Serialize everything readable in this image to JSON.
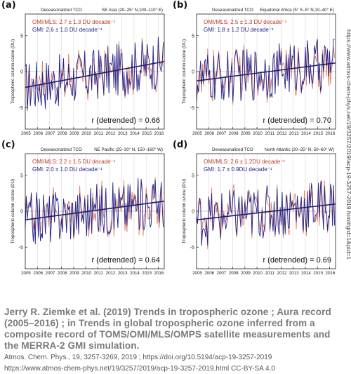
{
  "colors": {
    "omi": "#e0806c",
    "gmi": "#22238a",
    "trend": "#1d1d6e",
    "axis": "#222222",
    "grid": "#cfcfcf",
    "caption": "#7a7a7a"
  },
  "panels": [
    {
      "id": "a",
      "label": "(a)",
      "title_left": "Deseasonalized TCO",
      "title_right": "SE Asia (20–25° N,100–110° E)",
      "omi_label": "OMI/MLS:  2.7 ± 1.3 DU decade⁻¹",
      "gmi_label": "GMI:  2.6 ± 1.0 DU decade⁻¹",
      "r_label": "r (detrended) = 0.66"
    },
    {
      "id": "b",
      "label": "(b)",
      "title_left": "Deseasonalized TCO",
      "title_right": "Equatorial Africa (5° S–5° N,10–40° E)",
      "omi_label": "OMI/MLS:  2.5 ± 1.3 DU decade⁻¹",
      "gmi_label": "GMI:  1.8 ± 1.2 DU decade⁻¹",
      "r_label": "r (detrended) = 0.70"
    },
    {
      "id": "c",
      "label": "(c)",
      "title_left": "Deseasonalized TCO",
      "title_right": "NE Pacific (25–30° N, 150–160° W)",
      "omi_label": "OMI/MLS:  2.2 ± 1.5 DU decade⁻¹",
      "gmi_label": "GMI:  2.0 ± 1.0 DU decade⁻¹",
      "r_label": "r (detrended) = 0.64"
    },
    {
      "id": "d",
      "label": "(d)",
      "title_left": "Deseasonalized TCO",
      "title_right": "North Atlantic (20–25° N, 50–60° W)",
      "omi_label": "OMI/MLS:  2.6 ± 1.2DU decade⁻¹",
      "gmi_label": "GMI:  1.7 ± 0.9DU decade⁻¹",
      "r_label": "r (detrended) = 0.69"
    }
  ],
  "chart_data": [
    {
      "panel": "a",
      "type": "line",
      "ylabel": "Tropospheric column ozone (DU)",
      "xlim": [
        2005,
        2016.5
      ],
      "ylim": [
        -8,
        8
      ],
      "yticks": [
        -5,
        0,
        5
      ],
      "xticks": [
        2005,
        2006,
        2007,
        2008,
        2009,
        2010,
        2011,
        2012,
        2013,
        2014,
        2015,
        2016
      ],
      "series": [
        {
          "name": "OMI/MLS",
          "trend_per_decade": 2.7,
          "trend_uncertainty": 1.3
        },
        {
          "name": "GMI",
          "trend_per_decade": 2.6,
          "trend_uncertainty": 1.0
        }
      ],
      "trend_line": {
        "x": [
          2005,
          2016.5
        ],
        "y": [
          -2.2,
          1.4
        ]
      },
      "r_detrended": 0.66
    },
    {
      "panel": "b",
      "type": "line",
      "ylabel": "Tropospheric column ozone (DU)",
      "xlim": [
        2005,
        2016.5
      ],
      "ylim": [
        -8,
        8
      ],
      "yticks": [
        -5,
        0,
        5
      ],
      "xticks": [
        2005,
        2006,
        2007,
        2008,
        2009,
        2010,
        2011,
        2012,
        2013,
        2014,
        2015,
        2016
      ],
      "series": [
        {
          "name": "OMI/MLS",
          "trend_per_decade": 2.5,
          "trend_uncertainty": 1.3
        },
        {
          "name": "GMI",
          "trend_per_decade": 1.8,
          "trend_uncertainty": 1.2
        }
      ],
      "trend_line": {
        "x": [
          2005,
          2016.5
        ],
        "y": [
          -1.3,
          1.2
        ]
      },
      "r_detrended": 0.7
    },
    {
      "panel": "c",
      "type": "line",
      "ylabel": "Tropospheric column ozone (DU)",
      "xlim": [
        2005,
        2016.5
      ],
      "ylim": [
        -8,
        8
      ],
      "yticks": [
        -5,
        0,
        5
      ],
      "xticks": [
        2005,
        2006,
        2007,
        2008,
        2009,
        2010,
        2011,
        2012,
        2013,
        2014,
        2015,
        2016
      ],
      "series": [
        {
          "name": "OMI/MLS",
          "trend_per_decade": 2.2,
          "trend_uncertainty": 1.5
        },
        {
          "name": "GMI",
          "trend_per_decade": 2.0,
          "trend_uncertainty": 1.0
        }
      ],
      "trend_line": {
        "x": [
          2005,
          2016.5
        ],
        "y": [
          -1.2,
          1.4
        ]
      },
      "r_detrended": 0.64
    },
    {
      "panel": "d",
      "type": "line",
      "ylabel": "Tropospheric column ozone (DU)",
      "xlim": [
        2005,
        2016.5
      ],
      "ylim": [
        -8,
        8
      ],
      "yticks": [
        -5,
        0,
        5
      ],
      "xticks": [
        2005,
        2006,
        2007,
        2008,
        2009,
        2010,
        2011,
        2012,
        2013,
        2014,
        2015,
        2016
      ],
      "series": [
        {
          "name": "OMI/MLS",
          "trend_per_decade": 2.6,
          "trend_uncertainty": 1.2
        },
        {
          "name": "GMI",
          "trend_per_decade": 1.7,
          "trend_uncertainty": 0.9
        }
      ],
      "trend_line": {
        "x": [
          2005,
          2016.5
        ],
        "y": [
          -1.2,
          1.0
        ]
      },
      "r_detrended": 0.69
    }
  ],
  "side_url": "https://www.atmos-chem-phys.net/19/3257/2019/acp-19-3257-2019.html#gid=1&pid=1",
  "caption": {
    "main": "Jerry R. Ziemke et al. (2019) Trends in tropospheric ozone ; Aura record (2005–2016) ; in Trends in global tropospheric ozone inferred from a composite record of TOMS/OMI/MLS/OMPS satellite measurements and the MERRA-2 GMI simulation.",
    "citation": "Atmos. Chem. Phys., 19, 3257-3269, 2019 ; https://doi.org/10.5194/acp-19-3257-2019",
    "url": "https://www.atmos-chem-phys.net/19/3257/2019/acp-19-3257-2019.html CC-BY-SA 4.0"
  }
}
